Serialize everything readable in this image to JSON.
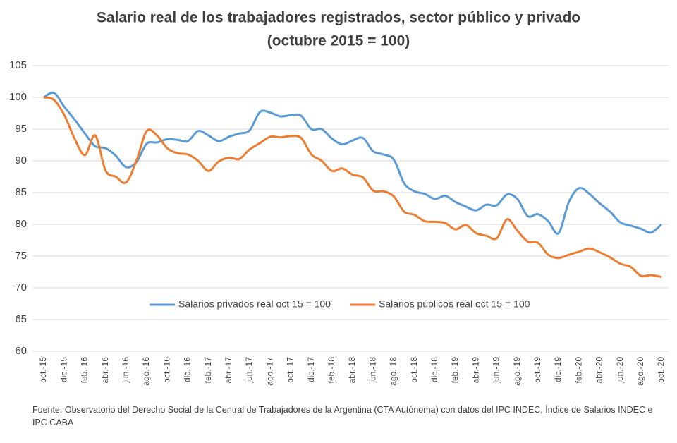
{
  "chart_data": {
    "type": "line",
    "title": "Salario real de los trabajadores registrados, sector público y privado",
    "subtitle": "(octubre 2015 = 100)",
    "source": "Fuente: Observatorio del Derecho Social de la Central de Trabajadores de la Argentina (CTA Autónoma) con datos del IPC INDEC, Índice de Salarios INDEC e IPC CABA",
    "categories": [
      "oct.-15",
      null,
      "dic.-15",
      null,
      "feb.-16",
      null,
      "abr.-16",
      null,
      "jun.-16",
      null,
      "ago.-16",
      null,
      "oct.-16",
      null,
      "dic.-16",
      null,
      "feb.-17",
      null,
      "abr.-17",
      null,
      "jun.-17",
      null,
      "ago.-17",
      null,
      "oct.-17",
      null,
      "dic.-17",
      null,
      "feb.-18",
      null,
      "abr.-18",
      null,
      "jun.-18",
      null,
      "ago.-18",
      null,
      "oct.-18",
      null,
      "dic.-18",
      null,
      "feb.-19",
      null,
      "abr.-19",
      null,
      "jun.-19",
      null,
      "ago.-19",
      null,
      "oct.-19",
      null,
      "dic.-19",
      null,
      "feb.-20",
      null,
      "abr.-20",
      null,
      "jun.-20",
      null,
      "ago.-20",
      null,
      "oct.-20"
    ],
    "series": [
      {
        "name": "Salarios privados real oct 15 = 100",
        "color": "#5b9bd5",
        "values": [
          100,
          100.7,
          98.5,
          96.5,
          94.3,
          92.3,
          92,
          90.8,
          89,
          89.8,
          92.7,
          92.9,
          93.4,
          93.3,
          93.1,
          94.7,
          94,
          93.1,
          93.8,
          94.3,
          94.8,
          97.7,
          97.6,
          97,
          97.2,
          97.1,
          95,
          95,
          93.5,
          92.6,
          93.2,
          93.6,
          91.5,
          91,
          90.2,
          86.5,
          85.2,
          84.8,
          84,
          84.5,
          83.5,
          82.8,
          82.2,
          83.1,
          83,
          84.7,
          84,
          81.3,
          81.6,
          80.5,
          78.6,
          83.5,
          85.7,
          84.8,
          83.3,
          82,
          80.3,
          79.8,
          79.3,
          78.7,
          80
        ]
      },
      {
        "name": "Salarios públicos real oct 15 = 100",
        "color": "#ed7d31",
        "values": [
          100,
          99.6,
          97.2,
          93.5,
          90.9,
          94,
          88.5,
          87.5,
          86.6,
          90,
          94.7,
          94,
          92,
          91.2,
          91,
          90,
          88.4,
          89.9,
          90.5,
          90.3,
          91.8,
          92.8,
          93.8,
          93.7,
          93.9,
          93.6,
          91,
          90,
          88.4,
          88.8,
          87.8,
          87.4,
          85.3,
          85.2,
          84.4,
          82,
          81.5,
          80.5,
          80.4,
          80.2,
          79.2,
          79.9,
          78.6,
          78.2,
          77.8,
          80.8,
          79,
          77.3,
          77.1,
          75.2,
          74.7,
          75.2,
          75.7,
          76.2,
          75.6,
          74.8,
          73.8,
          73.3,
          71.9,
          72,
          71.7
        ]
      }
    ],
    "ylim": [
      60,
      105
    ],
    "yticks": [
      60,
      65,
      70,
      75,
      80,
      85,
      90,
      95,
      100,
      105
    ],
    "grid": true,
    "legend": "inside-bottom"
  }
}
